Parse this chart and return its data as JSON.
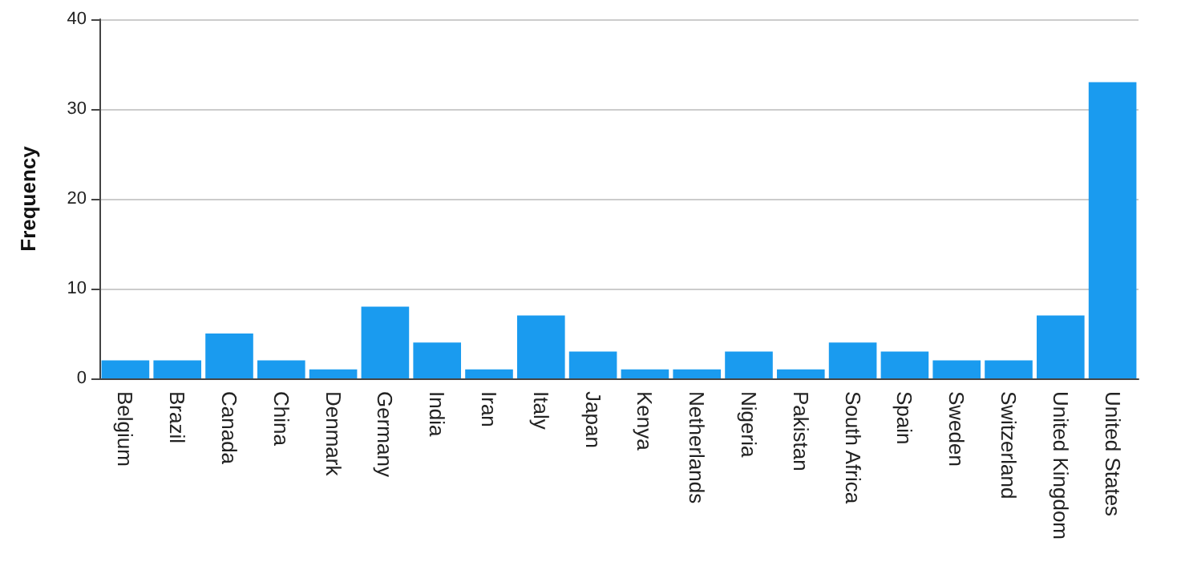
{
  "chart_data": {
    "type": "bar",
    "ylabel": "Frequency",
    "categories": [
      "Belgium",
      "Brazil",
      "Canada",
      "China",
      "Denmark",
      "Germany",
      "India",
      "Iran",
      "Italy",
      "Japan",
      "Kenya",
      "Netherlands",
      "Nigeria",
      "Pakistan",
      "South Africa",
      "Spain",
      "Sweden",
      "Switzerland",
      "United Kingdom",
      "United States"
    ],
    "values": [
      2,
      2,
      5,
      2,
      1,
      8,
      4,
      1,
      7,
      3,
      1,
      1,
      3,
      1,
      4,
      3,
      2,
      2,
      7,
      33
    ],
    "color": "#1a9bef",
    "ylim": [
      0,
      40
    ],
    "yticks": [
      0,
      10,
      20,
      30,
      40
    ],
    "grid": "y"
  }
}
